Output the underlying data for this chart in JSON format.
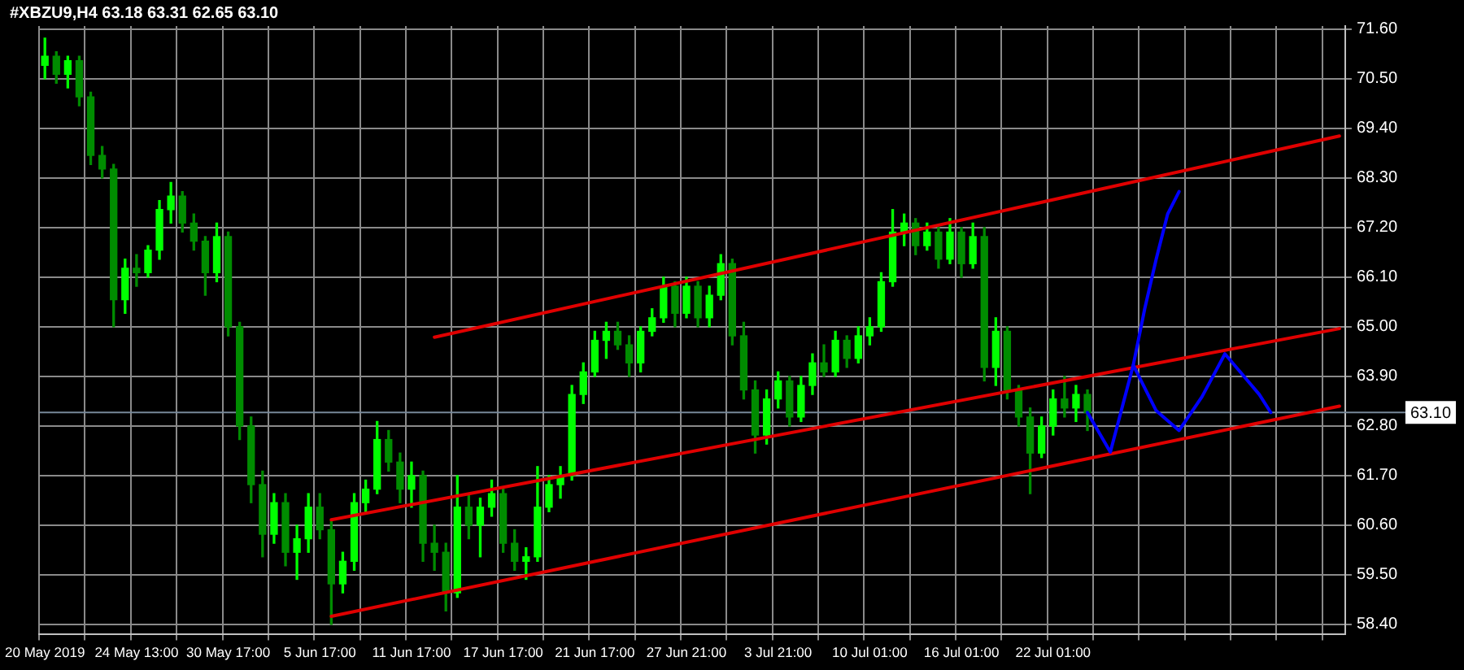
{
  "chart_data": {
    "type": "candlestick",
    "title": "#XBZU9,H4 63.18 63.31 62.65 63.10",
    "categories": [
      "20 May 2019",
      null,
      null,
      null,
      null,
      null,
      null,
      null,
      "24 May 13:00",
      null,
      null,
      null,
      null,
      null,
      null,
      null,
      "30 May 17:00",
      null,
      null,
      null,
      null,
      null,
      null,
      null,
      "5 Jun 17:00",
      null,
      null,
      null,
      null,
      null,
      null,
      null,
      "11 Jun 17:00",
      null,
      null,
      null,
      null,
      null,
      null,
      null,
      "17 Jun 17:00",
      null,
      null,
      null,
      null,
      null,
      null,
      null,
      "21 Jun 17:00",
      null,
      null,
      null,
      null,
      null,
      null,
      null,
      "27 Jun 21:00",
      null,
      null,
      null,
      null,
      null,
      null,
      null,
      "3 Jul 21:00",
      null,
      null,
      null,
      null,
      null,
      null,
      null,
      "10 Jul 01:00",
      null,
      null,
      null,
      null,
      null,
      null,
      null,
      "16 Jul 01:00",
      null,
      null,
      null,
      null,
      null,
      null,
      null,
      "22 Jul 01:00",
      null,
      null,
      null,
      null,
      null,
      null,
      null,
      null,
      null,
      null,
      null,
      null,
      null,
      null,
      null,
      null,
      null,
      null,
      null,
      null,
      null,
      null,
      null,
      null,
      null
    ],
    "colors": [
      "#00ff00",
      "#008c00",
      "#00ff00",
      "#008c00",
      "#008c00",
      "#008c00",
      "#008c00",
      "#00ff00",
      "#008c00",
      "#00ff00",
      "#00ff00",
      "#00ff00",
      "#008c00",
      "#008c00",
      "#008c00",
      "#00ff00",
      "#008c00",
      "#008c00",
      "#008c00",
      "#008c00",
      "#00ff00",
      "#008c00",
      "#00ff00",
      "#00ff00",
      "#008c00",
      "#008c00",
      "#00ff00",
      "#00ff00",
      "#00ff00",
      "#00ff00",
      "#008c00",
      "#008c00",
      "#00ff00",
      "#008c00",
      "#008c00",
      "#008c00",
      "#00ff00",
      "#008c00",
      "#00ff00",
      "#00ff00",
      "#008c00",
      "#008c00",
      "#00ff00",
      "#00ff00",
      "#00ff00",
      "#00ff00",
      "#00ff00",
      "#00ff00",
      "#00ff00",
      "#00ff00",
      "#008c00",
      "#008c00",
      "#00ff00",
      "#00ff00",
      "#00ff00",
      "#008c00",
      "#00ff00",
      "#008c00",
      "#00ff00",
      "#00ff00",
      "#008c00",
      "#008c00",
      "#008c00",
      "#00ff00",
      "#00ff00",
      "#008c00",
      "#00ff00",
      "#00ff00",
      "#008c00",
      "#00ff00",
      "#008c00",
      "#00ff00",
      "#00ff00",
      "#00ff00",
      "#00ff00",
      "#00ff00",
      "#008c00",
      "#00ff00",
      "#008c00",
      "#00ff00",
      "#008c00",
      "#00ff00",
      "#008c00",
      "#00ff00",
      "#008c00",
      "#008c00",
      "#008c00",
      "#00ff00",
      "#00ff00",
      "#008c00",
      "#00ff00",
      "#008c00",
      null,
      null,
      null,
      null,
      null,
      null,
      null,
      null,
      null,
      null,
      null,
      null,
      null,
      null,
      null,
      null,
      null,
      null,
      null,
      null,
      null,
      null
    ],
    "ohlc": [
      [
        70.8,
        71.4,
        70.5,
        71.0
      ],
      [
        71.0,
        71.1,
        70.4,
        70.6
      ],
      [
        70.6,
        71.0,
        70.3,
        70.9
      ],
      [
        70.9,
        71.0,
        69.9,
        70.1
      ],
      [
        70.1,
        70.2,
        68.6,
        68.8
      ],
      [
        68.8,
        69.0,
        68.3,
        68.5
      ],
      [
        68.5,
        68.6,
        65.0,
        65.6
      ],
      [
        65.6,
        66.5,
        65.3,
        66.3
      ],
      [
        66.3,
        66.6,
        65.9,
        66.2
      ],
      [
        66.2,
        66.8,
        66.1,
        66.7
      ],
      [
        66.7,
        67.8,
        66.5,
        67.6
      ],
      [
        67.6,
        68.2,
        67.3,
        67.9
      ],
      [
        67.9,
        68.0,
        67.1,
        67.3
      ],
      [
        67.3,
        67.5,
        66.7,
        66.9
      ],
      [
        66.9,
        67.0,
        65.7,
        66.2
      ],
      [
        66.2,
        67.3,
        66.0,
        67.0
      ],
      [
        67.0,
        67.1,
        64.8,
        65.0
      ],
      [
        65.0,
        65.1,
        62.5,
        62.8
      ],
      [
        62.8,
        63.0,
        61.1,
        61.5
      ],
      [
        61.5,
        61.8,
        59.9,
        60.4
      ],
      [
        60.4,
        61.3,
        60.2,
        61.1
      ],
      [
        61.1,
        61.3,
        59.7,
        60.0
      ],
      [
        60.0,
        60.6,
        59.4,
        60.3
      ],
      [
        60.3,
        61.3,
        60.0,
        61.0
      ],
      [
        61.0,
        61.3,
        60.3,
        60.5
      ],
      [
        60.5,
        60.7,
        58.4,
        59.3
      ],
      [
        59.3,
        60.0,
        59.1,
        59.8
      ],
      [
        59.8,
        61.3,
        59.6,
        61.1
      ],
      [
        61.1,
        61.6,
        60.9,
        61.4
      ],
      [
        61.4,
        62.9,
        61.3,
        62.5
      ],
      [
        62.5,
        62.7,
        61.8,
        62.0
      ],
      [
        62.0,
        62.2,
        61.1,
        61.4
      ],
      [
        61.4,
        62.0,
        61.0,
        61.7
      ],
      [
        61.7,
        61.8,
        59.8,
        60.2
      ],
      [
        60.2,
        60.6,
        59.6,
        60.0
      ],
      [
        60.0,
        60.2,
        58.7,
        59.1
      ],
      [
        59.1,
        61.7,
        59.0,
        61.0
      ],
      [
        61.0,
        61.3,
        60.3,
        60.6
      ],
      [
        60.6,
        61.2,
        59.9,
        61.0
      ],
      [
        61.0,
        61.6,
        60.8,
        61.3
      ],
      [
        61.3,
        61.4,
        60.0,
        60.2
      ],
      [
        60.2,
        60.5,
        59.6,
        59.8
      ],
      [
        59.8,
        60.1,
        59.4,
        59.9
      ],
      [
        59.9,
        61.9,
        59.8,
        61.0
      ],
      [
        61.0,
        61.7,
        60.9,
        61.5
      ],
      [
        61.5,
        61.9,
        61.2,
        61.7
      ],
      [
        61.7,
        63.7,
        61.6,
        63.5
      ],
      [
        63.5,
        64.2,
        63.3,
        64.0
      ],
      [
        64.0,
        64.9,
        63.9,
        64.7
      ],
      [
        64.7,
        65.1,
        64.3,
        64.9
      ],
      [
        64.9,
        65.1,
        64.5,
        64.6
      ],
      [
        64.6,
        64.8,
        63.9,
        64.2
      ],
      [
        64.2,
        65.0,
        64.0,
        64.9
      ],
      [
        64.9,
        65.4,
        64.8,
        65.2
      ],
      [
        65.2,
        66.1,
        65.1,
        65.9
      ],
      [
        65.9,
        66.0,
        65.0,
        65.3
      ],
      [
        65.3,
        66.1,
        65.2,
        65.9
      ],
      [
        65.9,
        66.0,
        65.0,
        65.2
      ],
      [
        65.2,
        65.9,
        65.0,
        65.7
      ],
      [
        65.7,
        66.6,
        65.6,
        66.4
      ],
      [
        66.4,
        66.5,
        64.6,
        64.8
      ],
      [
        64.8,
        65.1,
        63.4,
        63.6
      ],
      [
        63.6,
        63.8,
        62.2,
        62.6
      ],
      [
        62.6,
        63.6,
        62.4,
        63.4
      ],
      [
        63.4,
        64.0,
        63.2,
        63.8
      ],
      [
        63.8,
        63.9,
        62.8,
        63.0
      ],
      [
        63.0,
        63.9,
        62.9,
        63.7
      ],
      [
        63.7,
        64.4,
        63.5,
        64.2
      ],
      [
        64.2,
        64.6,
        63.9,
        64.0
      ],
      [
        64.0,
        64.9,
        63.9,
        64.7
      ],
      [
        64.7,
        64.8,
        64.1,
        64.3
      ],
      [
        64.3,
        65.0,
        64.2,
        64.8
      ],
      [
        64.8,
        65.2,
        64.6,
        65.0
      ],
      [
        65.0,
        66.2,
        64.9,
        66.0
      ],
      [
        66.0,
        67.6,
        65.9,
        67.1
      ],
      [
        67.1,
        67.5,
        66.8,
        67.3
      ],
      [
        67.3,
        67.4,
        66.6,
        66.8
      ],
      [
        66.8,
        67.3,
        66.7,
        67.1
      ],
      [
        67.1,
        67.2,
        66.3,
        66.5
      ],
      [
        66.5,
        67.4,
        66.4,
        67.1
      ],
      [
        67.1,
        67.2,
        66.1,
        66.4
      ],
      [
        66.4,
        67.3,
        66.3,
        67.0
      ],
      [
        67.0,
        67.2,
        63.8,
        64.1
      ],
      [
        64.1,
        65.2,
        63.7,
        64.9
      ],
      [
        64.9,
        65.0,
        63.4,
        63.6
      ],
      [
        63.6,
        63.7,
        62.8,
        63.0
      ],
      [
        63.0,
        63.2,
        61.3,
        62.2
      ],
      [
        62.2,
        63.0,
        62.1,
        62.8
      ],
      [
        62.8,
        63.6,
        62.6,
        63.4
      ],
      [
        63.4,
        63.9,
        63.0,
        63.2
      ],
      [
        63.2,
        63.7,
        62.9,
        63.5
      ],
      [
        63.5,
        63.6,
        62.7,
        63.1
      ],
      null,
      null,
      null,
      null,
      null,
      null,
      null,
      null,
      null,
      null,
      null,
      null,
      null,
      null,
      null,
      null,
      null,
      null,
      null,
      null,
      null,
      null
    ],
    "series": [
      {
        "type": "line",
        "color": "#0000ff",
        "values": [
          null,
          null,
          null,
          null,
          null,
          null,
          null,
          null,
          null,
          null,
          null,
          null,
          null,
          null,
          null,
          null,
          null,
          null,
          null,
          null,
          null,
          null,
          null,
          null,
          null,
          null,
          null,
          null,
          null,
          null,
          null,
          null,
          null,
          null,
          null,
          null,
          null,
          null,
          null,
          null,
          null,
          null,
          null,
          null,
          null,
          null,
          null,
          null,
          null,
          null,
          null,
          null,
          null,
          null,
          null,
          null,
          null,
          null,
          null,
          null,
          null,
          null,
          null,
          null,
          null,
          null,
          null,
          null,
          null,
          null,
          null,
          null,
          null,
          null,
          null,
          null,
          null,
          null,
          null,
          null,
          null,
          null,
          null,
          null,
          null,
          null,
          null,
          null,
          null,
          null,
          null,
          63.1,
          null,
          62.22,
          null,
          64.15,
          null,
          63.14,
          null,
          62.7,
          null,
          63.45,
          null,
          64.4,
          null,
          63.8,
          63.5,
          63.1,
          null,
          null,
          null,
          null,
          null,
          null
        ]
      },
      {
        "type": "line",
        "color": "#0000ff",
        "values": [
          null,
          null,
          null,
          null,
          null,
          null,
          null,
          null,
          null,
          null,
          null,
          null,
          null,
          null,
          null,
          null,
          null,
          null,
          null,
          null,
          null,
          null,
          null,
          null,
          null,
          null,
          null,
          null,
          null,
          null,
          null,
          null,
          null,
          null,
          null,
          null,
          null,
          null,
          null,
          null,
          null,
          null,
          null,
          null,
          null,
          null,
          null,
          null,
          null,
          null,
          null,
          null,
          null,
          null,
          null,
          null,
          null,
          null,
          null,
          null,
          null,
          null,
          null,
          null,
          null,
          null,
          null,
          null,
          null,
          null,
          null,
          null,
          null,
          null,
          null,
          null,
          null,
          null,
          null,
          null,
          null,
          null,
          null,
          null,
          null,
          null,
          null,
          null,
          null,
          null,
          null,
          null,
          null,
          null,
          null,
          64.15,
          65.4,
          66.5,
          67.5,
          68.0,
          null,
          null,
          null,
          null,
          null,
          null,
          null,
          null,
          null,
          null,
          null,
          null,
          null,
          null
        ]
      },
      {
        "type": "line",
        "color": "#e00000",
        "values": [
          null,
          null,
          null,
          null,
          null,
          null,
          null,
          null,
          null,
          null,
          null,
          null,
          null,
          null,
          null,
          null,
          null,
          null,
          null,
          null,
          null,
          null,
          null,
          null,
          null,
          null,
          null,
          null,
          null,
          null,
          null,
          null,
          null,
          null,
          64.77,
          null,
          null,
          null,
          null,
          null,
          null,
          null,
          null,
          null,
          null,
          null,
          null,
          null,
          null,
          null,
          null,
          null,
          null,
          null,
          null,
          null,
          null,
          null,
          null,
          null,
          null,
          null,
          null,
          null,
          null,
          null,
          null,
          null,
          null,
          null,
          null,
          null,
          null,
          null,
          null,
          null,
          null,
          null,
          null,
          null,
          null,
          null,
          null,
          null,
          null,
          null,
          null,
          null,
          null,
          null,
          null,
          null,
          null,
          null,
          null,
          null,
          null,
          null,
          null,
          null,
          null,
          null,
          null,
          null,
          null,
          null,
          null,
          null,
          null,
          null,
          null,
          null,
          null,
          69.23
        ]
      },
      {
        "type": "line",
        "color": "#e00000",
        "values": [
          null,
          null,
          null,
          null,
          null,
          null,
          null,
          null,
          null,
          null,
          null,
          null,
          null,
          null,
          null,
          null,
          null,
          null,
          null,
          null,
          null,
          null,
          null,
          null,
          null,
          60.72,
          null,
          null,
          null,
          null,
          null,
          null,
          null,
          null,
          null,
          null,
          null,
          null,
          null,
          null,
          null,
          null,
          null,
          null,
          null,
          null,
          null,
          null,
          null,
          null,
          null,
          null,
          null,
          null,
          null,
          null,
          null,
          null,
          null,
          null,
          null,
          null,
          null,
          null,
          null,
          null,
          null,
          null,
          null,
          null,
          null,
          null,
          null,
          null,
          null,
          null,
          null,
          null,
          null,
          null,
          null,
          null,
          null,
          null,
          null,
          null,
          null,
          null,
          null,
          null,
          null,
          null,
          null,
          null,
          null,
          null,
          null,
          null,
          null,
          null,
          null,
          null,
          null,
          null,
          null,
          null,
          null,
          null,
          null,
          null,
          null,
          null,
          null,
          64.96
        ]
      },
      {
        "type": "line",
        "color": "#e00000",
        "values": [
          null,
          null,
          null,
          null,
          null,
          null,
          null,
          null,
          null,
          null,
          null,
          null,
          null,
          null,
          null,
          null,
          null,
          null,
          null,
          null,
          null,
          null,
          null,
          null,
          null,
          58.58,
          null,
          null,
          null,
          null,
          null,
          null,
          null,
          null,
          null,
          null,
          null,
          null,
          null,
          null,
          null,
          null,
          null,
          null,
          null,
          null,
          null,
          null,
          null,
          null,
          null,
          null,
          null,
          null,
          null,
          null,
          null,
          null,
          null,
          null,
          null,
          null,
          null,
          null,
          null,
          null,
          null,
          null,
          null,
          null,
          null,
          null,
          null,
          null,
          null,
          null,
          null,
          null,
          null,
          null,
          null,
          null,
          null,
          null,
          null,
          null,
          null,
          null,
          null,
          null,
          null,
          null,
          null,
          null,
          null,
          null,
          null,
          null,
          null,
          null,
          null,
          null,
          null,
          null,
          null,
          null,
          null,
          null,
          null,
          null,
          null,
          null,
          null,
          63.24
        ]
      }
    ],
    "ylim": [
      58.19,
      71.67
    ],
    "yticks": [
      {
        "value": 58.4,
        "label": "58.40"
      },
      {
        "value": 59.5,
        "label": "59.50"
      },
      {
        "value": 60.6,
        "label": "60.60"
      },
      {
        "value": 61.7,
        "label": "61.70"
      },
      {
        "value": 62.8,
        "label": "62.80"
      },
      {
        "value": 63.9,
        "label": "63.90"
      },
      {
        "value": 65.0,
        "label": "65.00"
      },
      {
        "value": 66.1,
        "label": "66.10"
      },
      {
        "value": 67.2,
        "label": "67.20"
      },
      {
        "value": 68.3,
        "label": "68.30"
      },
      {
        "value": 69.4,
        "label": "69.40"
      },
      {
        "value": 70.5,
        "label": "70.50"
      },
      {
        "value": 71.6,
        "label": "71.60"
      }
    ],
    "ref_lines": [
      {
        "axis": "y",
        "value": 63.1,
        "label": "63.10",
        "color": "#778899"
      }
    ],
    "grid": true,
    "legend": false,
    "marker": "none",
    "line_style": "solid"
  }
}
